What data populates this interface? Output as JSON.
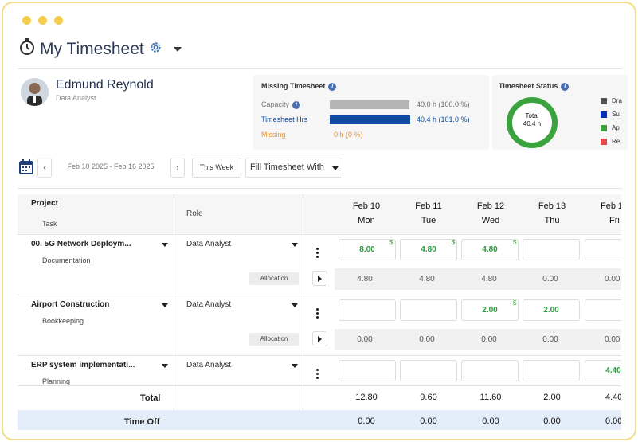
{
  "window": {
    "controls": [
      "close",
      "minimize",
      "maximize"
    ]
  },
  "header": {
    "title": "My Timesheet",
    "icons": [
      "stopwatch-icon",
      "gear-icon",
      "chevron-down-icon"
    ]
  },
  "user": {
    "name": "Edmund Reynold",
    "role": "Data Analyst"
  },
  "missing_panel": {
    "title": "Missing Timesheet",
    "capacity_label": "Capacity",
    "capacity_value": "40.0 h (100.0 %)",
    "capacity_fraction": 1.0,
    "hours_label": "Timesheet Hrs",
    "hours_value": "40.4 h (101.0 %)",
    "hours_fraction": 1.01,
    "missing_label": "Missing",
    "missing_value": "0 h (0 %)",
    "colors": {
      "capacity": "#b4b4b4",
      "hours": "#0d4aa0",
      "missing": "#e8963a"
    }
  },
  "status_panel": {
    "title": "Timesheet Status",
    "donut_total_label": "Total",
    "donut_total_value": "40.4 h",
    "legend": [
      {
        "label": "Dra",
        "color": "#555555"
      },
      {
        "label": "Sul",
        "color": "#0b2fb8"
      },
      {
        "label": "Ap",
        "color": "#3aa33d"
      },
      {
        "label": "Re",
        "color": "#e84a4a"
      }
    ]
  },
  "toolbar": {
    "date_range": "Feb 10 2025 - Feb 16 2025",
    "this_week": "This Week",
    "fill_label": "Fill Timesheet With"
  },
  "grid": {
    "header": {
      "project": "Project",
      "task": "Task",
      "role": "Role"
    },
    "days": [
      {
        "date": "Feb 10",
        "dow": "Mon"
      },
      {
        "date": "Feb 11",
        "dow": "Tue"
      },
      {
        "date": "Feb 12",
        "dow": "Wed"
      },
      {
        "date": "Feb 13",
        "dow": "Thu"
      },
      {
        "date": "Feb 1",
        "dow": "Fri"
      }
    ],
    "rows": [
      {
        "project": "00. 5G Network Deploym...",
        "task": "Documentation",
        "role": "Data Analyst",
        "allocation_label": "Allocation",
        "entries": [
          "8.00",
          "4.80",
          "4.80",
          "",
          ""
        ],
        "allocation": [
          "4.80",
          "4.80",
          "4.80",
          "0.00",
          "0.00"
        ]
      },
      {
        "project": "Airport Construction",
        "task": "Bookkeeping",
        "role": "Data Analyst",
        "allocation_label": "Allocation",
        "entries": [
          "",
          "",
          "2.00",
          "2.00",
          ""
        ],
        "allocation": [
          "0.00",
          "0.00",
          "0.00",
          "0.00",
          "0.00"
        ]
      },
      {
        "project": "ERP system implementati...",
        "task": "Planning",
        "role": "Data Analyst",
        "entries": [
          "",
          "",
          "",
          "",
          "4.40"
        ]
      }
    ],
    "total": {
      "label": "Total",
      "values": [
        "12.80",
        "9.60",
        "11.60",
        "2.00",
        "4.40"
      ]
    },
    "timeoff": {
      "label": "Time Off",
      "values": [
        "0.00",
        "0.00",
        "0.00",
        "0.00",
        "0.00"
      ]
    },
    "dollar_symbol": "$"
  }
}
